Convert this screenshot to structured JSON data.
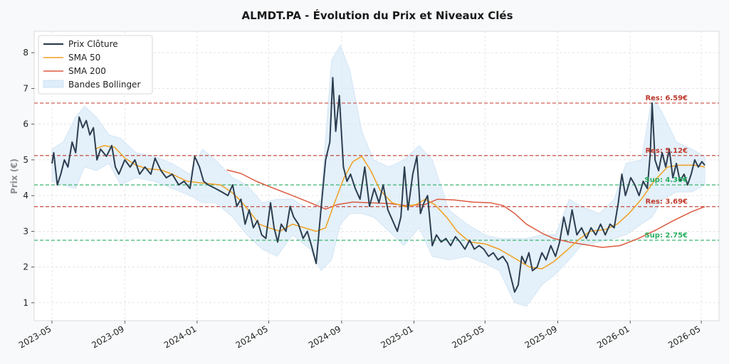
{
  "chart_data": {
    "type": "line",
    "title": "ALMDT.PA - Évolution du Prix et Niveaux Clés",
    "ylabel": "Prix (€)",
    "xlabel": "",
    "ylim": [
      0.5,
      8.6
    ],
    "xlim": [
      "2023-04-01",
      "2026-05-31"
    ],
    "yticks": [
      1,
      2,
      3,
      4,
      5,
      6,
      7,
      8
    ],
    "xticks": [
      {
        "date": "2023-05-01",
        "label": "2023-05"
      },
      {
        "date": "2023-09-01",
        "label": "2023-09"
      },
      {
        "date": "2024-01-01",
        "label": "2024-01"
      },
      {
        "date": "2024-05-01",
        "label": "2024-05"
      },
      {
        "date": "2024-09-01",
        "label": "2024-09"
      },
      {
        "date": "2025-01-01",
        "label": "2025-01"
      },
      {
        "date": "2025-05-01",
        "label": "2025-05"
      },
      {
        "date": "2025-09-01",
        "label": "2025-09"
      },
      {
        "date": "2026-01-01",
        "label": "2026-01"
      },
      {
        "date": "2026-05-01",
        "label": "2026-05"
      }
    ],
    "grid": true,
    "legend_position": "top-left",
    "colors": {
      "close": "#2c3e50",
      "sma50": "#f0a020",
      "sma200": "#dd5a40",
      "band": "#d6e8f7",
      "resistance": "#c0392b",
      "support": "#27ae60"
    },
    "legend": {
      "close": "Prix Clôture",
      "sma50": "SMA 50",
      "sma200": "SMA 200",
      "bands": "Bandes Bollinger"
    },
    "levels": [
      {
        "type": "resistance",
        "value": 6.59,
        "label": "Res: 6.59€"
      },
      {
        "type": "resistance",
        "value": 5.12,
        "label": "Res: 5.12€"
      },
      {
        "type": "support",
        "value": 4.3,
        "label": "Sup: 4.30€"
      },
      {
        "type": "resistance",
        "value": 3.69,
        "label": "Res: 3.69€"
      },
      {
        "type": "support",
        "value": 2.75,
        "label": "Sup: 2.75€"
      }
    ],
    "close": [
      [
        "2023-05-01",
        4.9
      ],
      [
        "2023-05-04",
        5.2
      ],
      [
        "2023-05-10",
        4.3
      ],
      [
        "2023-05-16",
        4.6
      ],
      [
        "2023-05-22",
        5.0
      ],
      [
        "2023-05-28",
        4.8
      ],
      [
        "2023-06-04",
        5.5
      ],
      [
        "2023-06-10",
        5.2
      ],
      [
        "2023-06-16",
        6.2
      ],
      [
        "2023-06-22",
        5.9
      ],
      [
        "2023-06-28",
        6.1
      ],
      [
        "2023-07-04",
        5.7
      ],
      [
        "2023-07-10",
        5.9
      ],
      [
        "2023-07-16",
        5.0
      ],
      [
        "2023-07-22",
        5.3
      ],
      [
        "2023-08-01",
        5.1
      ],
      [
        "2023-08-10",
        5.4
      ],
      [
        "2023-08-16",
        4.8
      ],
      [
        "2023-08-22",
        4.6
      ],
      [
        "2023-09-01",
        5.0
      ],
      [
        "2023-09-10",
        4.8
      ],
      [
        "2023-09-18",
        5.0
      ],
      [
        "2023-09-26",
        4.6
      ],
      [
        "2023-10-05",
        4.8
      ],
      [
        "2023-10-15",
        4.6
      ],
      [
        "2023-10-22",
        5.05
      ],
      [
        "2023-11-01",
        4.7
      ],
      [
        "2023-11-10",
        4.5
      ],
      [
        "2023-11-20",
        4.6
      ],
      [
        "2023-12-01",
        4.3
      ],
      [
        "2023-12-10",
        4.4
      ],
      [
        "2023-12-20",
        4.2
      ],
      [
        "2023-12-28",
        5.1
      ],
      [
        "2024-01-05",
        4.8
      ],
      [
        "2024-01-12",
        4.4
      ],
      [
        "2024-01-20",
        4.3
      ],
      [
        "2024-02-01",
        4.2
      ],
      [
        "2024-02-12",
        4.1
      ],
      [
        "2024-02-22",
        4.0
      ],
      [
        "2024-03-01",
        4.3
      ],
      [
        "2024-03-08",
        3.7
      ],
      [
        "2024-03-15",
        3.9
      ],
      [
        "2024-03-22",
        3.2
      ],
      [
        "2024-03-29",
        3.6
      ],
      [
        "2024-04-05",
        3.1
      ],
      [
        "2024-04-12",
        3.3
      ],
      [
        "2024-04-19",
        2.9
      ],
      [
        "2024-04-26",
        2.8
      ],
      [
        "2024-05-04",
        3.8
      ],
      [
        "2024-05-10",
        3.1
      ],
      [
        "2024-05-16",
        2.7
      ],
      [
        "2024-05-22",
        3.2
      ],
      [
        "2024-05-30",
        3.0
      ],
      [
        "2024-06-06",
        3.7
      ],
      [
        "2024-06-12",
        3.4
      ],
      [
        "2024-06-20",
        3.2
      ],
      [
        "2024-06-28",
        2.8
      ],
      [
        "2024-07-05",
        3.0
      ],
      [
        "2024-07-12",
        2.6
      ],
      [
        "2024-07-20",
        2.1
      ],
      [
        "2024-07-28",
        3.6
      ],
      [
        "2024-08-05",
        5.0
      ],
      [
        "2024-08-12",
        5.5
      ],
      [
        "2024-08-17",
        7.3
      ],
      [
        "2024-08-22",
        5.8
      ],
      [
        "2024-08-28",
        6.8
      ],
      [
        "2024-09-04",
        4.8
      ],
      [
        "2024-09-10",
        4.4
      ],
      [
        "2024-09-16",
        4.6
      ],
      [
        "2024-09-24",
        4.2
      ],
      [
        "2024-10-02",
        3.9
      ],
      [
        "2024-10-10",
        4.8
      ],
      [
        "2024-10-18",
        3.7
      ],
      [
        "2024-10-26",
        4.2
      ],
      [
        "2024-11-03",
        3.8
      ],
      [
        "2024-11-10",
        4.3
      ],
      [
        "2024-11-18",
        3.6
      ],
      [
        "2024-11-26",
        3.3
      ],
      [
        "2024-12-04",
        3.0
      ],
      [
        "2024-12-10",
        3.4
      ],
      [
        "2024-12-16",
        4.8
      ],
      [
        "2024-12-22",
        3.6
      ],
      [
        "2024-12-30",
        4.6
      ],
      [
        "2025-01-06",
        5.1
      ],
      [
        "2025-01-12",
        3.5
      ],
      [
        "2025-01-18",
        3.8
      ],
      [
        "2025-01-24",
        4.0
      ],
      [
        "2025-02-01",
        2.6
      ],
      [
        "2025-02-08",
        2.9
      ],
      [
        "2025-02-16",
        2.7
      ],
      [
        "2025-02-24",
        2.8
      ],
      [
        "2025-03-04",
        2.6
      ],
      [
        "2025-03-12",
        2.85
      ],
      [
        "2025-03-20",
        2.7
      ],
      [
        "2025-03-28",
        2.5
      ],
      [
        "2025-04-05",
        2.75
      ],
      [
        "2025-04-13",
        2.5
      ],
      [
        "2025-04-21",
        2.6
      ],
      [
        "2025-04-29",
        2.5
      ],
      [
        "2025-05-07",
        2.3
      ],
      [
        "2025-05-15",
        2.4
      ],
      [
        "2025-05-23",
        2.2
      ],
      [
        "2025-05-31",
        2.3
      ],
      [
        "2025-06-08",
        2.1
      ],
      [
        "2025-06-14",
        1.7
      ],
      [
        "2025-06-20",
        1.3
      ],
      [
        "2025-06-26",
        1.5
      ],
      [
        "2025-07-02",
        2.3
      ],
      [
        "2025-07-08",
        2.1
      ],
      [
        "2025-07-14",
        2.4
      ],
      [
        "2025-07-20",
        1.9
      ],
      [
        "2025-07-28",
        2.0
      ],
      [
        "2025-08-05",
        2.4
      ],
      [
        "2025-08-12",
        2.2
      ],
      [
        "2025-08-20",
        2.6
      ],
      [
        "2025-08-28",
        2.3
      ],
      [
        "2025-09-04",
        2.7
      ],
      [
        "2025-09-11",
        3.4
      ],
      [
        "2025-09-18",
        2.9
      ],
      [
        "2025-09-25",
        3.6
      ],
      [
        "2025-10-03",
        2.9
      ],
      [
        "2025-10-11",
        3.1
      ],
      [
        "2025-10-19",
        2.8
      ],
      [
        "2025-10-27",
        3.1
      ],
      [
        "2025-11-04",
        2.9
      ],
      [
        "2025-11-12",
        3.2
      ],
      [
        "2025-11-20",
        2.9
      ],
      [
        "2025-11-28",
        3.2
      ],
      [
        "2025-12-05",
        3.1
      ],
      [
        "2025-12-12",
        3.8
      ],
      [
        "2025-12-18",
        4.6
      ],
      [
        "2025-12-24",
        4.0
      ],
      [
        "2026-01-02",
        4.5
      ],
      [
        "2026-01-09",
        4.3
      ],
      [
        "2026-01-16",
        4.0
      ],
      [
        "2026-01-23",
        4.4
      ],
      [
        "2026-01-30",
        4.2
      ],
      [
        "2026-02-04",
        5.2
      ],
      [
        "2026-02-07",
        6.59
      ],
      [
        "2026-02-12",
        5.0
      ],
      [
        "2026-02-18",
        4.7
      ],
      [
        "2026-02-24",
        5.2
      ],
      [
        "2026-03-02",
        4.8
      ],
      [
        "2026-03-08",
        5.3
      ],
      [
        "2026-03-14",
        4.5
      ],
      [
        "2026-03-20",
        4.9
      ],
      [
        "2026-03-26",
        4.4
      ],
      [
        "2026-04-02",
        4.6
      ],
      [
        "2026-04-08",
        4.3
      ],
      [
        "2026-04-14",
        4.6
      ],
      [
        "2026-04-20",
        5.0
      ],
      [
        "2026-04-26",
        4.8
      ],
      [
        "2026-05-02",
        4.95
      ],
      [
        "2026-05-07",
        4.85
      ]
    ],
    "sma50": [
      [
        "2023-07-12",
        5.3
      ],
      [
        "2023-07-28",
        5.4
      ],
      [
        "2023-08-15",
        5.35
      ],
      [
        "2023-09-01",
        5.05
      ],
      [
        "2023-09-20",
        4.85
      ],
      [
        "2023-10-10",
        4.75
      ],
      [
        "2023-11-01",
        4.72
      ],
      [
        "2023-11-20",
        4.6
      ],
      [
        "2023-12-15",
        4.4
      ],
      [
        "2024-01-10",
        4.35
      ],
      [
        "2024-02-10",
        4.3
      ],
      [
        "2024-02-28",
        4.1
      ],
      [
        "2024-03-15",
        3.85
      ],
      [
        "2024-04-01",
        3.5
      ],
      [
        "2024-04-15",
        3.2
      ],
      [
        "2024-05-01",
        3.1
      ],
      [
        "2024-05-20",
        3.0
      ],
      [
        "2024-06-10",
        3.2
      ],
      [
        "2024-06-30",
        3.1
      ],
      [
        "2024-07-20",
        3.0
      ],
      [
        "2024-08-05",
        3.1
      ],
      [
        "2024-08-20",
        3.8
      ],
      [
        "2024-09-05",
        4.5
      ],
      [
        "2024-09-20",
        4.95
      ],
      [
        "2024-10-05",
        5.1
      ],
      [
        "2024-10-20",
        4.7
      ],
      [
        "2024-11-05",
        4.15
      ],
      [
        "2024-11-25",
        3.8
      ],
      [
        "2024-12-15",
        3.7
      ],
      [
        "2025-01-05",
        3.75
      ],
      [
        "2025-01-20",
        3.9
      ],
      [
        "2025-02-05",
        3.75
      ],
      [
        "2025-02-25",
        3.4
      ],
      [
        "2025-03-15",
        3.0
      ],
      [
        "2025-04-05",
        2.7
      ],
      [
        "2025-05-01",
        2.65
      ],
      [
        "2025-05-25",
        2.5
      ],
      [
        "2025-06-20",
        2.25
      ],
      [
        "2025-07-15",
        2.0
      ],
      [
        "2025-08-05",
        1.95
      ],
      [
        "2025-08-25",
        2.15
      ],
      [
        "2025-09-15",
        2.45
      ],
      [
        "2025-10-05",
        2.75
      ],
      [
        "2025-10-25",
        3.0
      ],
      [
        "2025-11-20",
        3.05
      ],
      [
        "2025-12-10",
        3.2
      ],
      [
        "2025-12-30",
        3.5
      ],
      [
        "2026-01-20",
        3.9
      ],
      [
        "2026-02-10",
        4.4
      ],
      [
        "2026-03-05",
        4.8
      ],
      [
        "2026-03-25",
        4.85
      ],
      [
        "2026-04-20",
        4.85
      ],
      [
        "2026-05-07",
        4.8
      ]
    ],
    "sma200": [
      [
        "2024-02-20",
        4.72
      ],
      [
        "2024-03-15",
        4.62
      ],
      [
        "2024-04-10",
        4.4
      ],
      [
        "2024-05-10",
        4.2
      ],
      [
        "2024-06-10",
        4.0
      ],
      [
        "2024-07-10",
        3.8
      ],
      [
        "2024-08-05",
        3.62
      ],
      [
        "2024-08-25",
        3.75
      ],
      [
        "2024-09-20",
        3.82
      ],
      [
        "2024-10-20",
        3.8
      ],
      [
        "2024-11-20",
        3.78
      ],
      [
        "2024-12-20",
        3.72
      ],
      [
        "2025-01-20",
        3.75
      ],
      [
        "2025-02-10",
        3.9
      ],
      [
        "2025-03-10",
        3.88
      ],
      [
        "2025-04-10",
        3.82
      ],
      [
        "2025-05-10",
        3.8
      ],
      [
        "2025-06-01",
        3.72
      ],
      [
        "2025-06-20",
        3.5
      ],
      [
        "2025-07-10",
        3.2
      ],
      [
        "2025-08-05",
        2.95
      ],
      [
        "2025-08-25",
        2.8
      ],
      [
        "2025-09-20",
        2.7
      ],
      [
        "2025-10-20",
        2.62
      ],
      [
        "2025-11-15",
        2.55
      ],
      [
        "2025-12-15",
        2.6
      ],
      [
        "2026-01-15",
        2.8
      ],
      [
        "2026-02-15",
        3.05
      ],
      [
        "2026-03-15",
        3.3
      ],
      [
        "2026-04-15",
        3.55
      ],
      [
        "2026-05-07",
        3.69
      ]
    ],
    "bollinger": [
      [
        "2023-05-01",
        5.3,
        4.4
      ],
      [
        "2023-05-20",
        5.5,
        4.3
      ],
      [
        "2023-06-10",
        6.2,
        4.2
      ],
      [
        "2023-06-25",
        6.5,
        4.8
      ],
      [
        "2023-07-15",
        6.2,
        4.7
      ],
      [
        "2023-08-05",
        5.7,
        4.9
      ],
      [
        "2023-08-25",
        5.6,
        4.3
      ],
      [
        "2023-09-20",
        5.2,
        4.5
      ],
      [
        "2023-10-20",
        5.1,
        4.4
      ],
      [
        "2023-11-20",
        4.9,
        4.2
      ],
      [
        "2023-12-20",
        4.6,
        4.0
      ],
      [
        "2024-01-10",
        5.3,
        3.8
      ],
      [
        "2024-02-01",
        5.0,
        3.8
      ],
      [
        "2024-03-01",
        4.5,
        3.4
      ],
      [
        "2024-03-25",
        4.3,
        2.9
      ],
      [
        "2024-04-20",
        3.8,
        2.5
      ],
      [
        "2024-05-15",
        3.9,
        2.3
      ],
      [
        "2024-06-10",
        3.9,
        2.9
      ],
      [
        "2024-07-10",
        3.6,
        2.5
      ],
      [
        "2024-07-28",
        3.9,
        1.9
      ],
      [
        "2024-08-15",
        7.8,
        2.2
      ],
      [
        "2024-08-30",
        8.2,
        3.2
      ],
      [
        "2024-09-15",
        7.5,
        3.5
      ],
      [
        "2024-10-05",
        5.8,
        3.5
      ],
      [
        "2024-10-25",
        5.0,
        3.4
      ],
      [
        "2024-11-20",
        4.8,
        3.0
      ],
      [
        "2024-12-15",
        5.0,
        2.6
      ],
      [
        "2025-01-10",
        5.4,
        3.1
      ],
      [
        "2025-02-01",
        5.0,
        2.3
      ],
      [
        "2025-03-01",
        3.6,
        2.2
      ],
      [
        "2025-04-01",
        3.2,
        2.3
      ],
      [
        "2025-05-01",
        2.9,
        2.1
      ],
      [
        "2025-05-25",
        2.8,
        1.9
      ],
      [
        "2025-06-20",
        2.8,
        1.0
      ],
      [
        "2025-07-10",
        2.8,
        0.9
      ],
      [
        "2025-08-05",
        2.9,
        1.5
      ],
      [
        "2025-08-28",
        2.9,
        1.8
      ],
      [
        "2025-09-20",
        3.9,
        2.2
      ],
      [
        "2025-10-10",
        3.7,
        2.6
      ],
      [
        "2025-11-10",
        3.5,
        2.7
      ],
      [
        "2025-12-05",
        3.9,
        2.8
      ],
      [
        "2025-12-25",
        4.9,
        2.9
      ],
      [
        "2026-01-20",
        5.0,
        3.2
      ],
      [
        "2026-02-07",
        6.8,
        3.4
      ],
      [
        "2026-02-25",
        6.3,
        3.9
      ],
      [
        "2026-03-20",
        5.5,
        4.1
      ],
      [
        "2026-04-15",
        5.3,
        4.1
      ],
      [
        "2026-05-07",
        5.1,
        4.3
      ]
    ]
  }
}
